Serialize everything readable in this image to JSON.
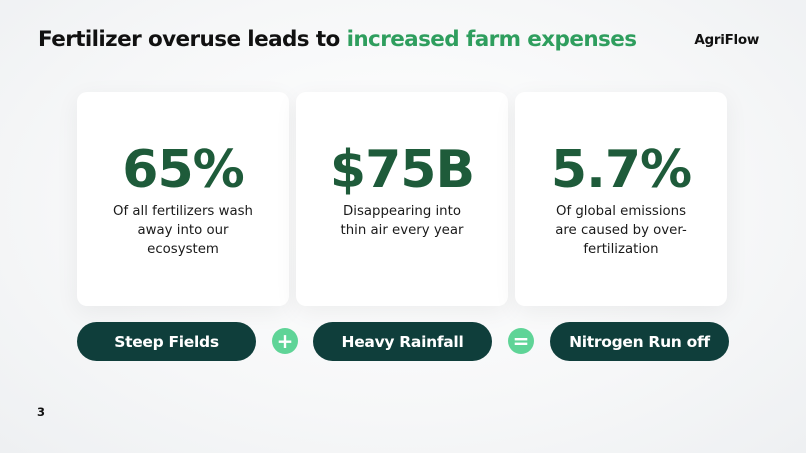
{
  "title": {
    "prefix": "Fertilizer overuse leads to ",
    "highlight": "increased farm expenses"
  },
  "brand": "AgriFlow",
  "stats": [
    {
      "value": "65%",
      "description": "Of all fertilizers wash away into our ecosystem"
    },
    {
      "value": "$75B",
      "description": "Disappearing into thin air every year"
    },
    {
      "value": "5.7%",
      "description": "Of  global emissions are caused by over-fertilization"
    }
  ],
  "equation": {
    "term1": "Steep Fields",
    "op1": "+",
    "term2": "Heavy Rainfall",
    "op2": "=",
    "result": "Nitrogen Run off"
  },
  "page_number": "3",
  "colors": {
    "accent_green": "#2f9e5e",
    "stat_green": "#1e5b3a",
    "pill_dark": "#0f3e3b",
    "operator_green": "#5fd497"
  }
}
